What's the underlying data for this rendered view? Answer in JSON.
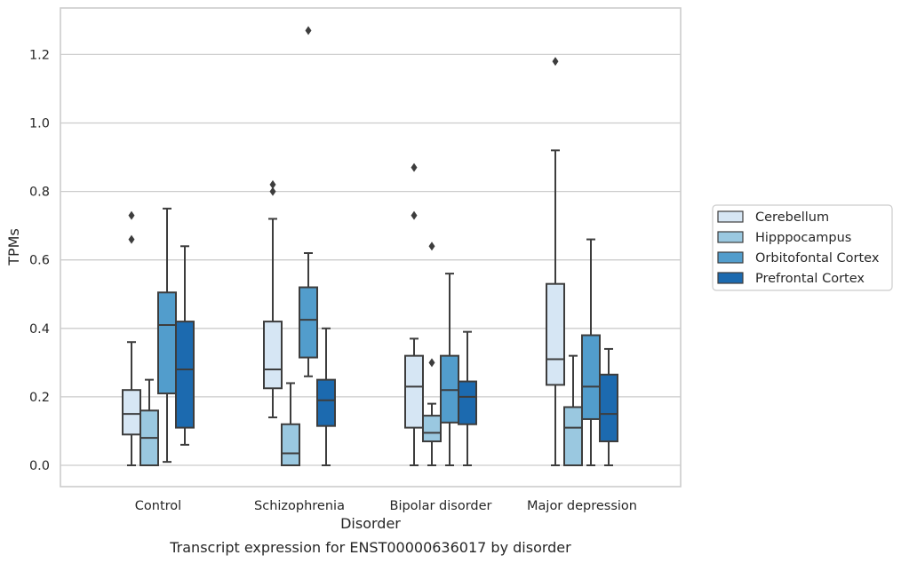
{
  "chart_data": {
    "type": "box",
    "xlabel": "Disorder",
    "ylabel": "TPMs",
    "caption": "Transcript expression for ENST00000636017 by disorder",
    "ylim": [
      -0.06,
      1.34
    ],
    "yticks": [
      "0.0",
      "0.2",
      "0.4",
      "0.6",
      "0.8",
      "1.0",
      "1.2"
    ],
    "grid": "horizontal",
    "legend_position": "right",
    "categories": [
      "Control",
      "Schizophrenia",
      "Bipolar disorder",
      "Major depression"
    ],
    "series": [
      {
        "name": "Cerebellum",
        "color": "#d6e6f4",
        "boxes": [
          {
            "whislo": 0.0,
            "q1": 0.09,
            "med": 0.15,
            "q3": 0.22,
            "whishi": 0.36,
            "fliers": [
              0.66,
              0.73
            ]
          },
          {
            "whislo": 0.14,
            "q1": 0.225,
            "med": 0.28,
            "q3": 0.42,
            "whishi": 0.72,
            "fliers": [
              0.8,
              0.82
            ]
          },
          {
            "whislo": 0.0,
            "q1": 0.11,
            "med": 0.23,
            "q3": 0.32,
            "whishi": 0.37,
            "fliers": [
              0.73,
              0.87
            ]
          },
          {
            "whislo": 0.0,
            "q1": 0.235,
            "med": 0.31,
            "q3": 0.53,
            "whishi": 0.92,
            "fliers": [
              1.18
            ]
          }
        ]
      },
      {
        "name": "Hipppocampus",
        "color": "#9ac8e0",
        "boxes": [
          {
            "whislo": 0.0,
            "q1": 0.0,
            "med": 0.08,
            "q3": 0.16,
            "whishi": 0.25,
            "fliers": []
          },
          {
            "whislo": 0.0,
            "q1": 0.0,
            "med": 0.035,
            "q3": 0.12,
            "whishi": 0.24,
            "fliers": []
          },
          {
            "whislo": 0.0,
            "q1": 0.07,
            "med": 0.095,
            "q3": 0.145,
            "whishi": 0.18,
            "fliers": [
              0.3,
              0.64
            ]
          },
          {
            "whislo": 0.0,
            "q1": 0.0,
            "med": 0.11,
            "q3": 0.17,
            "whishi": 0.32,
            "fliers": []
          }
        ]
      },
      {
        "name": "Orbitofontal Cortex",
        "color": "#529dcc",
        "boxes": [
          {
            "whislo": 0.01,
            "q1": 0.21,
            "med": 0.41,
            "q3": 0.505,
            "whishi": 0.75,
            "fliers": []
          },
          {
            "whislo": 0.26,
            "q1": 0.315,
            "med": 0.425,
            "q3": 0.52,
            "whishi": 0.62,
            "fliers": [
              1.27
            ]
          },
          {
            "whislo": 0.0,
            "q1": 0.125,
            "med": 0.22,
            "q3": 0.32,
            "whishi": 0.56,
            "fliers": []
          },
          {
            "whislo": 0.0,
            "q1": 0.135,
            "med": 0.23,
            "q3": 0.38,
            "whishi": 0.66,
            "fliers": []
          }
        ]
      },
      {
        "name": "Prefrontal Cortex",
        "color": "#1c6aaf",
        "boxes": [
          {
            "whislo": 0.06,
            "q1": 0.11,
            "med": 0.28,
            "q3": 0.42,
            "whishi": 0.64,
            "fliers": []
          },
          {
            "whislo": 0.0,
            "q1": 0.115,
            "med": 0.19,
            "q3": 0.25,
            "whishi": 0.4,
            "fliers": []
          },
          {
            "whislo": 0.0,
            "q1": 0.12,
            "med": 0.2,
            "q3": 0.245,
            "whishi": 0.39,
            "fliers": []
          },
          {
            "whislo": 0.0,
            "q1": 0.07,
            "med": 0.15,
            "q3": 0.265,
            "whishi": 0.34,
            "fliers": []
          }
        ]
      }
    ],
    "colors": {
      "edge": "#3d3d3d",
      "grid": "#cccccc",
      "frame": "#cccccc",
      "text": "#262626"
    }
  }
}
